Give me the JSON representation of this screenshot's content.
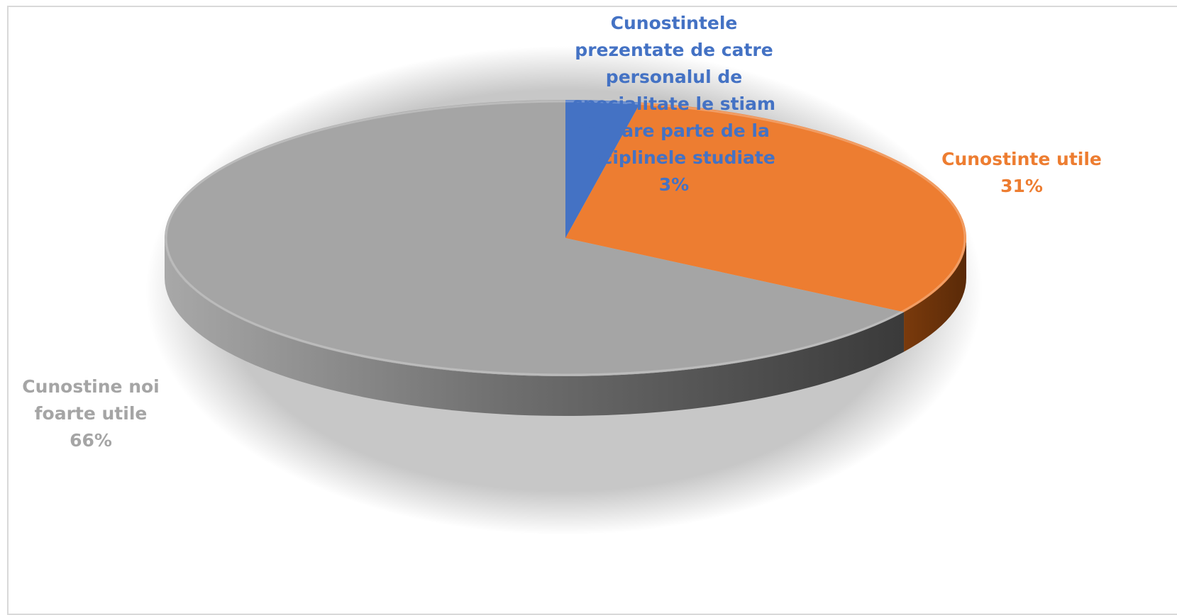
{
  "chart_data": {
    "type": "pie",
    "title": "",
    "categories": [
      "Cunostintele prezentate de catre personalul de specialitate le stiam in mare parte de la disciplinele studiate",
      "Cunostinte utile",
      "Cunostine noi foarte utile"
    ],
    "values": [
      3,
      31,
      66
    ],
    "unit": "%",
    "colors": [
      "#4472c4",
      "#ed7d31",
      "#a5a5a5"
    ],
    "legend": "none",
    "style": "3d"
  },
  "labels": {
    "slice_1": {
      "lines": [
        "Cunostintele",
        "prezentate de catre",
        "personalul de",
        "specialitate le stiam",
        "in mare parte de la",
        "disciplinele studiate"
      ],
      "pct": "3%"
    },
    "slice_2": {
      "lines": [
        "Cunostinte utile"
      ],
      "pct": "31%"
    },
    "slice_3": {
      "lines": [
        "Cunostine noi",
        "foarte utile"
      ],
      "pct": "66%"
    }
  }
}
